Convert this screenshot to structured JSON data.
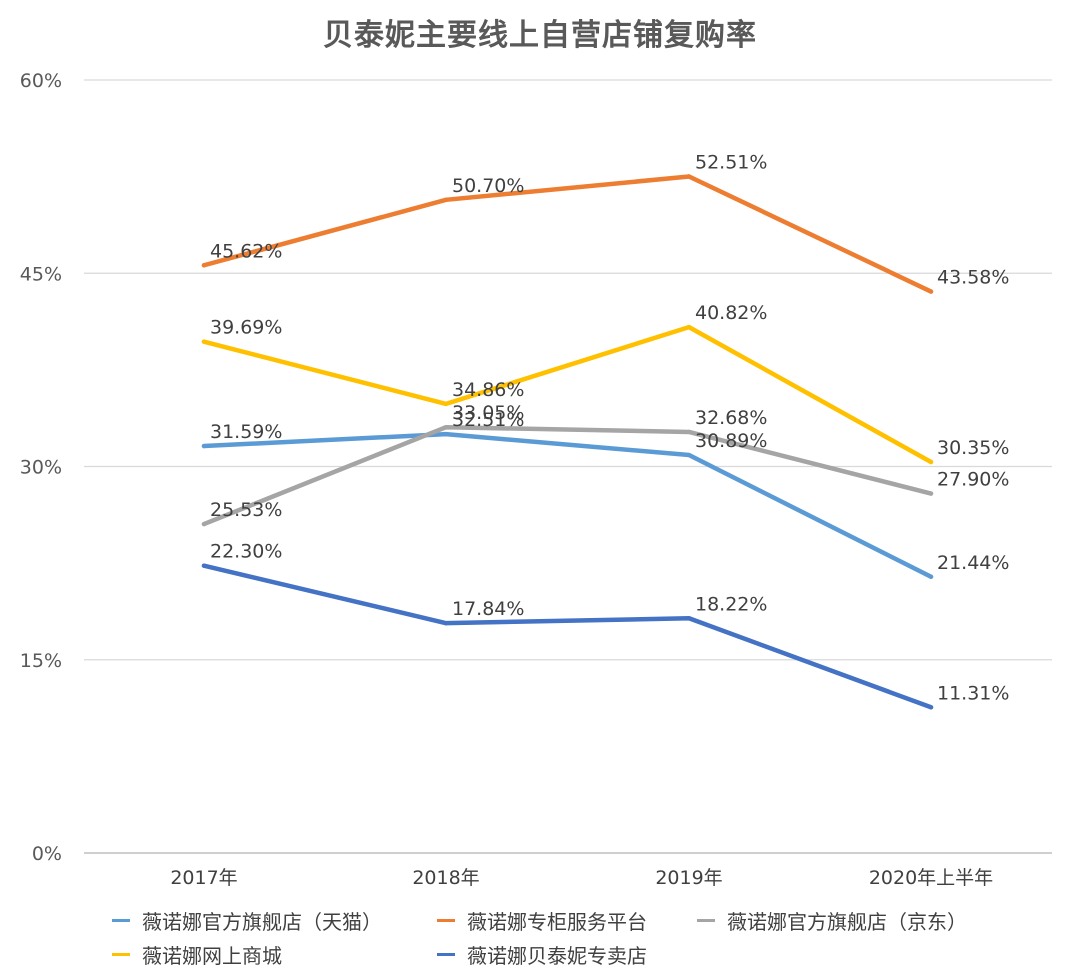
{
  "chart_data": {
    "type": "line",
    "title": "贝泰妮主要线上自营店铺复购率",
    "categories": [
      "2017年",
      "2018年",
      "2019年",
      "2020年上半年"
    ],
    "ylim": [
      0,
      60
    ],
    "yticks": [
      0,
      15,
      30,
      45,
      60
    ],
    "ytick_labels": [
      "0%",
      "15%",
      "30%",
      "45%",
      "60%"
    ],
    "grid": true,
    "legend_position": "bottom",
    "series": [
      {
        "name": "薇诺娜官方旗舰店（天猫）",
        "color": "#5B9BD5",
        "values": [
          31.59,
          32.51,
          30.89,
          21.44
        ],
        "labels": [
          "31.59%",
          "32.51%",
          "30.89%",
          "21.44%"
        ]
      },
      {
        "name": "薇诺娜专柜服务平台",
        "color": "#ED7D31",
        "values": [
          45.62,
          50.7,
          52.51,
          43.58
        ],
        "labels": [
          "45.62%",
          "50.70%",
          "52.51%",
          "43.58%"
        ]
      },
      {
        "name": "薇诺娜官方旗舰店（京东）",
        "color": "#A5A5A5",
        "values": [
          25.53,
          33.05,
          32.68,
          27.9
        ],
        "labels": [
          "25.53%",
          "33.05%",
          "32.68%",
          "27.90%"
        ]
      },
      {
        "name": "薇诺娜网上商城",
        "color": "#FFC000",
        "values": [
          39.69,
          34.86,
          40.82,
          30.35
        ],
        "labels": [
          "39.69%",
          "34.86%",
          "40.82%",
          "30.35%"
        ]
      },
      {
        "name": "薇诺娜贝泰妮专卖店",
        "color": "#4472C4",
        "values": [
          22.3,
          17.84,
          18.22,
          11.31
        ],
        "labels": [
          "22.30%",
          "17.84%",
          "18.22%",
          "11.31%"
        ]
      }
    ]
  }
}
